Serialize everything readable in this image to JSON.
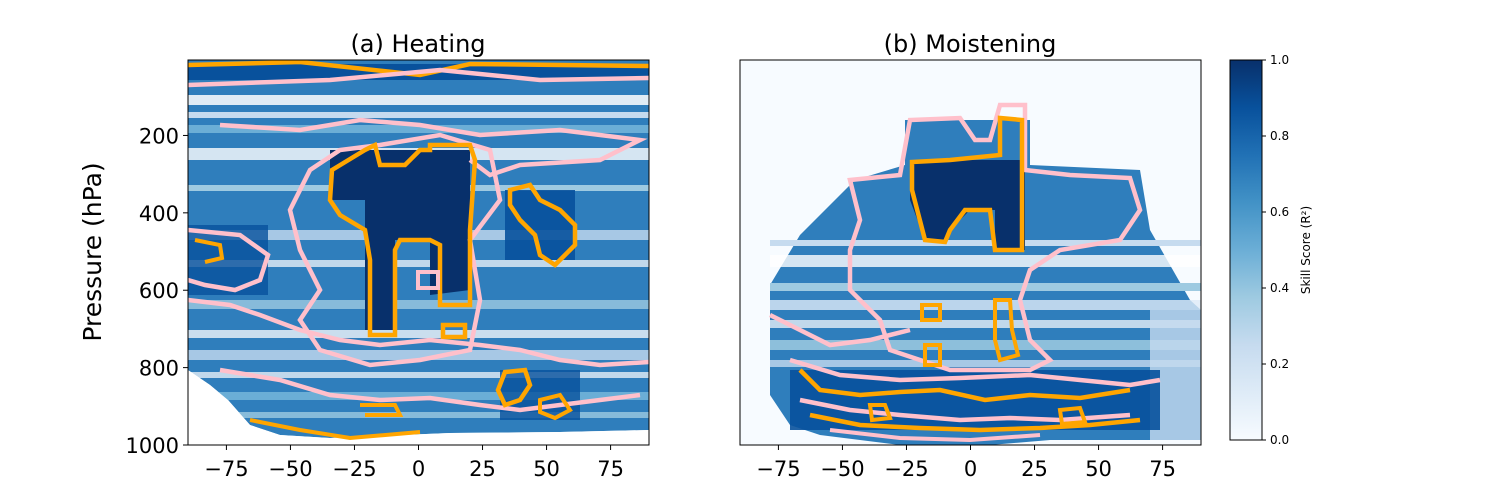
{
  "chart_data": [
    {
      "type": "heatmap",
      "title": "(a) Heating",
      "xlabel": "",
      "ylabel": "Pressure (hPa)",
      "xlim": [
        -90,
        90
      ],
      "ylim": [
        1000,
        5
      ],
      "x_ticks": [
        -75,
        -50,
        -25,
        0,
        25,
        50,
        75
      ],
      "y_ticks": [
        200,
        400,
        600,
        800,
        1000
      ],
      "contour_levels": [
        {
          "level": 0.7,
          "color": "#ffc0cb"
        },
        {
          "level": 0.9,
          "color": "#ffa500"
        }
      ],
      "surface_pressure": [
        [
          -90,
          790
        ],
        [
          -80,
          850
        ],
        [
          -70,
          930
        ],
        [
          -60,
          960
        ],
        [
          -45,
          990
        ],
        [
          -25,
          995
        ],
        [
          0,
          995
        ],
        [
          25,
          990
        ],
        [
          50,
          985
        ],
        [
          75,
          985
        ],
        [
          90,
          985
        ]
      ],
      "regions": [
        {
          "lat": [
            -25,
            22
          ],
          "p": [
            230,
            330
          ],
          "r2": 0.97
        },
        {
          "lat": [
            -30,
            -8
          ],
          "p": [
            330,
            720
          ],
          "r2": 0.96
        },
        {
          "lat": [
            -8,
            20
          ],
          "p": [
            330,
            600
          ],
          "r2": 0.95
        },
        {
          "lat": [
            30,
            60
          ],
          "p": [
            340,
            560
          ],
          "r2": 0.9
        },
        {
          "lat": [
            -90,
            90
          ],
          "p": [
            10,
            60
          ],
          "r2": 0.85
        },
        {
          "lat": [
            -75,
            75
          ],
          "p": [
            840,
            960
          ],
          "r2": 0.82
        }
      ]
    },
    {
      "type": "heatmap",
      "title": "(b) Moistening",
      "xlabel": "",
      "ylabel": "",
      "xlim": [
        -90,
        90
      ],
      "ylim": [
        1000,
        5
      ],
      "x_ticks": [
        -75,
        -50,
        -25,
        0,
        25,
        50,
        75
      ],
      "contour_levels": [
        {
          "level": 0.7,
          "color": "#ffc0cb"
        },
        {
          "level": 0.9,
          "color": "#ffa500"
        }
      ],
      "data_region": [
        [
          -35,
          150
        ],
        [
          35,
          150
        ],
        [
          50,
          300
        ],
        [
          80,
          550
        ],
        [
          90,
          750
        ],
        [
          90,
          1000
        ],
        [
          -90,
          1000
        ],
        [
          -90,
          780
        ],
        [
          -65,
          650
        ],
        [
          -45,
          400
        ]
      ],
      "regions": [
        {
          "lat": [
            -20,
            22
          ],
          "p": [
            160,
            450
          ],
          "r2": 0.97
        },
        {
          "lat": [
            -40,
            60
          ],
          "p": [
            300,
            560
          ],
          "r2": 0.8
        },
        {
          "lat": [
            -15,
            20
          ],
          "p": [
            650,
            800
          ],
          "r2": 0.85
        },
        {
          "lat": [
            -65,
            65
          ],
          "p": [
            880,
            980
          ],
          "r2": 0.85
        }
      ]
    }
  ],
  "colorbar": {
    "label": "Skill Score (R²)",
    "min": 0.0,
    "max": 1.0,
    "ticks": [
      "0.0",
      "0.2",
      "0.4",
      "0.6",
      "0.8",
      "1.0"
    ],
    "colors": [
      "#f7fbff",
      "#deebf7",
      "#c6dbef",
      "#9ecae1",
      "#6baed6",
      "#4292c6",
      "#2171b5",
      "#08519c",
      "#08306b"
    ]
  }
}
